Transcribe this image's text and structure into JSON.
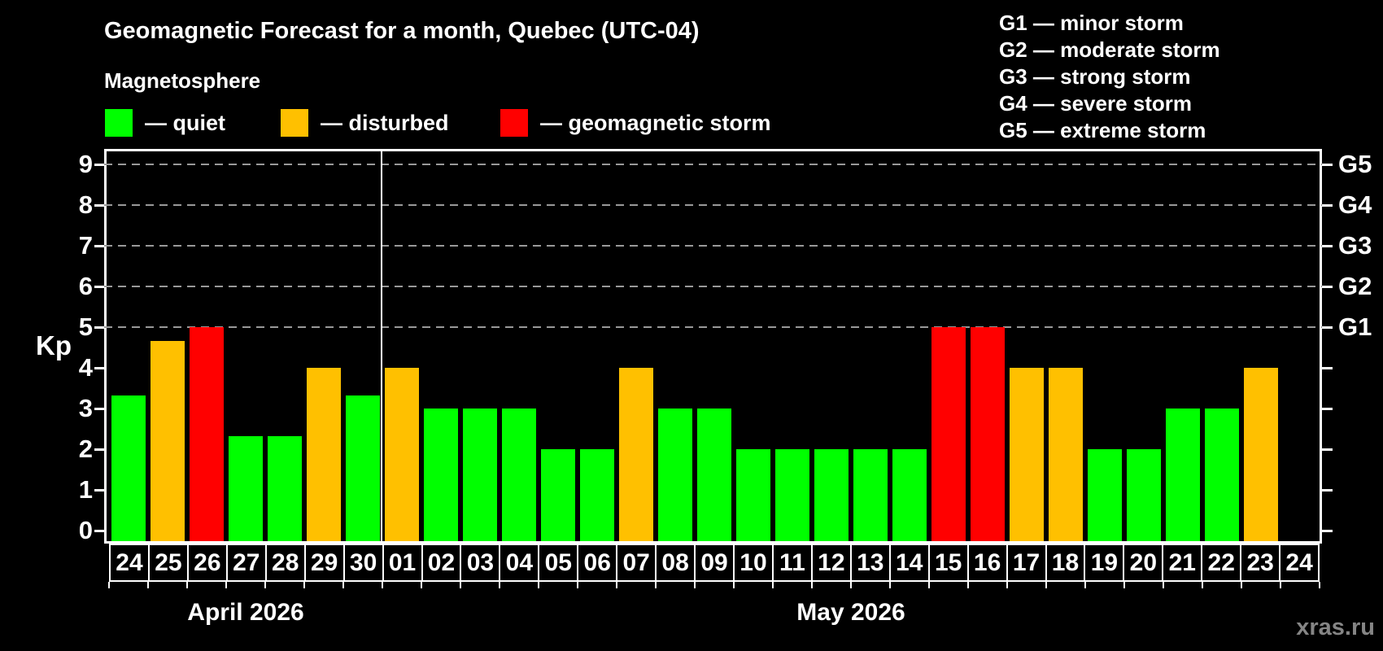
{
  "header": {
    "title": "Geomagnetic Forecast for a month, Quebec (UTC-04)",
    "subtitle": "Magnetosphere"
  },
  "legend": {
    "items": [
      {
        "name": "quiet",
        "label": "— quiet",
        "color": "#00ff00"
      },
      {
        "name": "disturbed",
        "label": "— disturbed",
        "color": "#ffc000"
      },
      {
        "name": "storm",
        "label": "— geomagnetic storm",
        "color": "#ff0000"
      }
    ]
  },
  "g_legend": {
    "items": [
      {
        "label": "G1 — minor storm"
      },
      {
        "label": "G2 — moderate storm"
      },
      {
        "label": "G3 — strong storm"
      },
      {
        "label": "G4 — severe storm"
      },
      {
        "label": "G5 — extreme storm"
      }
    ]
  },
  "axes": {
    "y_label": "Kp",
    "y_ticks": [
      0,
      1,
      2,
      3,
      4,
      5,
      6,
      7,
      8,
      9
    ],
    "right_labels": [
      {
        "label": "G1",
        "kp": 5
      },
      {
        "label": "G2",
        "kp": 6
      },
      {
        "label": "G3",
        "kp": 7
      },
      {
        "label": "G4",
        "kp": 8
      },
      {
        "label": "G5",
        "kp": 9
      }
    ],
    "gridlines_at": [
      5,
      6,
      7,
      8,
      9
    ]
  },
  "watermark": "xras.ru",
  "chart_data": {
    "type": "bar",
    "title": "Geomagnetic Forecast for a month, Quebec (UTC-04)",
    "xlabel": "",
    "ylabel": "Kp",
    "ylim": [
      0,
      9
    ],
    "grid": "dashed horizontal at Kp 5-9 (G1-G5 levels)",
    "legend_position": "top-left",
    "colors": {
      "quiet": "#00ff00",
      "disturbed": "#ffc000",
      "storm": "#ff0000"
    },
    "months": [
      {
        "label": "April 2026",
        "days_count": 7
      },
      {
        "label": "May 2026",
        "days_count": 24
      }
    ],
    "days": [
      {
        "month": "April 2026",
        "day": "24",
        "kp": 3.33,
        "status": "quiet"
      },
      {
        "month": "April 2026",
        "day": "25",
        "kp": 4.67,
        "status": "disturbed"
      },
      {
        "month": "April 2026",
        "day": "26",
        "kp": 5,
        "status": "storm"
      },
      {
        "month": "April 2026",
        "day": "27",
        "kp": 2.33,
        "status": "quiet"
      },
      {
        "month": "April 2026",
        "day": "28",
        "kp": 2.33,
        "status": "quiet"
      },
      {
        "month": "April 2026",
        "day": "29",
        "kp": 4,
        "status": "disturbed"
      },
      {
        "month": "April 2026",
        "day": "30",
        "kp": 3.33,
        "status": "quiet"
      },
      {
        "month": "May 2026",
        "day": "01",
        "kp": 4,
        "status": "disturbed"
      },
      {
        "month": "May 2026",
        "day": "02",
        "kp": 3,
        "status": "quiet"
      },
      {
        "month": "May 2026",
        "day": "03",
        "kp": 3,
        "status": "quiet"
      },
      {
        "month": "May 2026",
        "day": "04",
        "kp": 3,
        "status": "quiet"
      },
      {
        "month": "May 2026",
        "day": "05",
        "kp": 2,
        "status": "quiet"
      },
      {
        "month": "May 2026",
        "day": "06",
        "kp": 2,
        "status": "quiet"
      },
      {
        "month": "May 2026",
        "day": "07",
        "kp": 4,
        "status": "disturbed"
      },
      {
        "month": "May 2026",
        "day": "08",
        "kp": 3,
        "status": "quiet"
      },
      {
        "month": "May 2026",
        "day": "09",
        "kp": 3,
        "status": "quiet"
      },
      {
        "month": "May 2026",
        "day": "10",
        "kp": 2,
        "status": "quiet"
      },
      {
        "month": "May 2026",
        "day": "11",
        "kp": 2,
        "status": "quiet"
      },
      {
        "month": "May 2026",
        "day": "12",
        "kp": 2,
        "status": "quiet"
      },
      {
        "month": "May 2026",
        "day": "13",
        "kp": 2,
        "status": "quiet"
      },
      {
        "month": "May 2026",
        "day": "14",
        "kp": 2,
        "status": "quiet"
      },
      {
        "month": "May 2026",
        "day": "15",
        "kp": 5,
        "status": "storm"
      },
      {
        "month": "May 2026",
        "day": "16",
        "kp": 5,
        "status": "storm"
      },
      {
        "month": "May 2026",
        "day": "17",
        "kp": 4,
        "status": "disturbed"
      },
      {
        "month": "May 2026",
        "day": "18",
        "kp": 4,
        "status": "disturbed"
      },
      {
        "month": "May 2026",
        "day": "19",
        "kp": 2,
        "status": "quiet"
      },
      {
        "month": "May 2026",
        "day": "20",
        "kp": 2,
        "status": "quiet"
      },
      {
        "month": "May 2026",
        "day": "21",
        "kp": 3,
        "status": "quiet"
      },
      {
        "month": "May 2026",
        "day": "22",
        "kp": 3,
        "status": "quiet"
      },
      {
        "month": "May 2026",
        "day": "23",
        "kp": 4,
        "status": "disturbed"
      },
      {
        "month": "May 2026",
        "day": "24",
        "kp": null,
        "status": "none"
      }
    ]
  }
}
